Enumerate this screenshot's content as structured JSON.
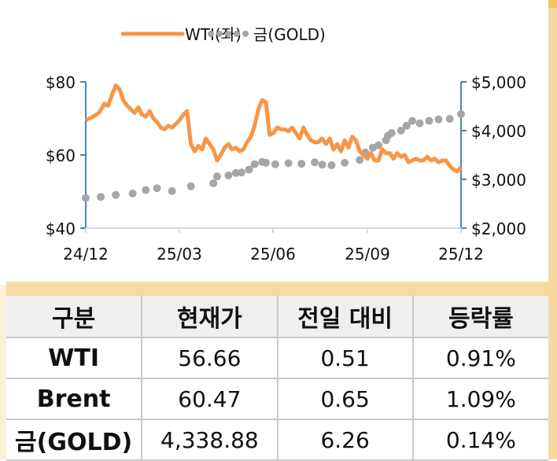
{
  "chart_data": {
    "type": "line",
    "title": "",
    "legend": {
      "position": "top",
      "entries": [
        {
          "name": "WTI(좌)",
          "style": "line",
          "color": "#f79646",
          "axis": "left"
        },
        {
          "name": "금(GOLD)",
          "style": "dotted",
          "color": "#a6a6a6",
          "axis": "right"
        }
      ]
    },
    "x_ticks": [
      "24/12",
      "25/03",
      "25/06",
      "25/09",
      "25/12"
    ],
    "left_axis": {
      "ticks": [
        "$80",
        "$60",
        "$40"
      ],
      "range": [
        40,
        80
      ],
      "color": "#4f81bd"
    },
    "right_axis": {
      "ticks": [
        "$5,000",
        "$4,000",
        "$3,000",
        "$2,000"
      ],
      "range": [
        2000,
        5000
      ],
      "color": "#4f81bd"
    },
    "grid": false,
    "series": [
      {
        "name": "WTI(좌)",
        "axis": "left",
        "x_frac": [
          0.0,
          0.02,
          0.035,
          0.05,
          0.06,
          0.07,
          0.08,
          0.09,
          0.1,
          0.11,
          0.12,
          0.13,
          0.14,
          0.15,
          0.16,
          0.17,
          0.18,
          0.19,
          0.2,
          0.21,
          0.22,
          0.23,
          0.24,
          0.25,
          0.26,
          0.27,
          0.28,
          0.29,
          0.3,
          0.31,
          0.32,
          0.33,
          0.34,
          0.35,
          0.36,
          0.37,
          0.38,
          0.39,
          0.4,
          0.41,
          0.42,
          0.43,
          0.44,
          0.45,
          0.46,
          0.47,
          0.48,
          0.49,
          0.5,
          0.51,
          0.52,
          0.53,
          0.54,
          0.55,
          0.56,
          0.57,
          0.58,
          0.59,
          0.6,
          0.61,
          0.62,
          0.63,
          0.64,
          0.65,
          0.66,
          0.67,
          0.68,
          0.69,
          0.7,
          0.71,
          0.72,
          0.73,
          0.74,
          0.75,
          0.76,
          0.77,
          0.78,
          0.79,
          0.8,
          0.81,
          0.82,
          0.83,
          0.84,
          0.85,
          0.86,
          0.87,
          0.88,
          0.89,
          0.9,
          0.91,
          0.92,
          0.93,
          0.94,
          0.95,
          0.96,
          0.97,
          0.98,
          0.99,
          1.0
        ],
        "values": [
          69.5,
          70.5,
          71.5,
          74,
          73.5,
          76.5,
          79,
          78,
          75,
          73.5,
          72.5,
          71.5,
          73,
          71,
          70.5,
          72,
          70,
          69,
          67.5,
          67,
          68,
          67.5,
          68.5,
          69.5,
          71,
          72,
          63,
          61,
          62.5,
          61.5,
          64.5,
          63,
          61.5,
          58.5,
          60,
          62,
          63,
          61.5,
          62,
          61,
          61.5,
          63.5,
          65,
          68,
          72.5,
          75,
          74.5,
          65.5,
          66,
          67.5,
          67,
          67,
          66.5,
          67.5,
          66,
          64.5,
          67.5,
          65.5,
          64,
          63.5,
          63.5,
          64.5,
          63,
          64.5,
          61.5,
          63,
          61,
          64,
          62,
          65,
          64,
          61,
          60,
          59,
          60.5,
          58.5,
          58.5,
          61.5,
          60.5,
          60.5,
          59,
          60.5,
          59.5,
          60,
          58,
          58.5,
          59,
          58.5,
          58.5,
          59.5,
          58.5,
          59,
          58,
          58.5,
          58.5,
          57,
          56,
          55.5,
          56.66
        ]
      },
      {
        "name": "금(GOLD)",
        "axis": "right",
        "x_frac": [
          0.0,
          0.04,
          0.08,
          0.125,
          0.16,
          0.19,
          0.23,
          0.28,
          0.34,
          0.35,
          0.38,
          0.4,
          0.415,
          0.435,
          0.45,
          0.47,
          0.48,
          0.505,
          0.54,
          0.575,
          0.61,
          0.63,
          0.655,
          0.69,
          0.73,
          0.745,
          0.765,
          0.78,
          0.8,
          0.805,
          0.815,
          0.84,
          0.855,
          0.87,
          0.89,
          0.915,
          0.94,
          0.97,
          1.0
        ],
        "values": [
          2620,
          2640,
          2680,
          2710,
          2780,
          2820,
          2760,
          2860,
          2920,
          3060,
          3080,
          3130,
          3140,
          3200,
          3310,
          3360,
          3340,
          3310,
          3330,
          3320,
          3350,
          3300,
          3290,
          3340,
          3400,
          3550,
          3650,
          3700,
          3800,
          3890,
          3950,
          4000,
          4100,
          4200,
          4150,
          4200,
          4230,
          4240,
          4338.88
        ]
      }
    ]
  },
  "table": {
    "headers": [
      "구분",
      "현재가",
      "전일 대비",
      "등락률"
    ],
    "rows": [
      {
        "name": "WTI",
        "price": "56.66",
        "change": "0.51",
        "rate": "0.91%"
      },
      {
        "name": "Brent",
        "price": "60.47",
        "change": "0.65",
        "rate": "1.09%"
      },
      {
        "name": "금(GOLD)",
        "price": "4,338.88",
        "change": "6.26",
        "rate": "0.14%"
      }
    ]
  }
}
